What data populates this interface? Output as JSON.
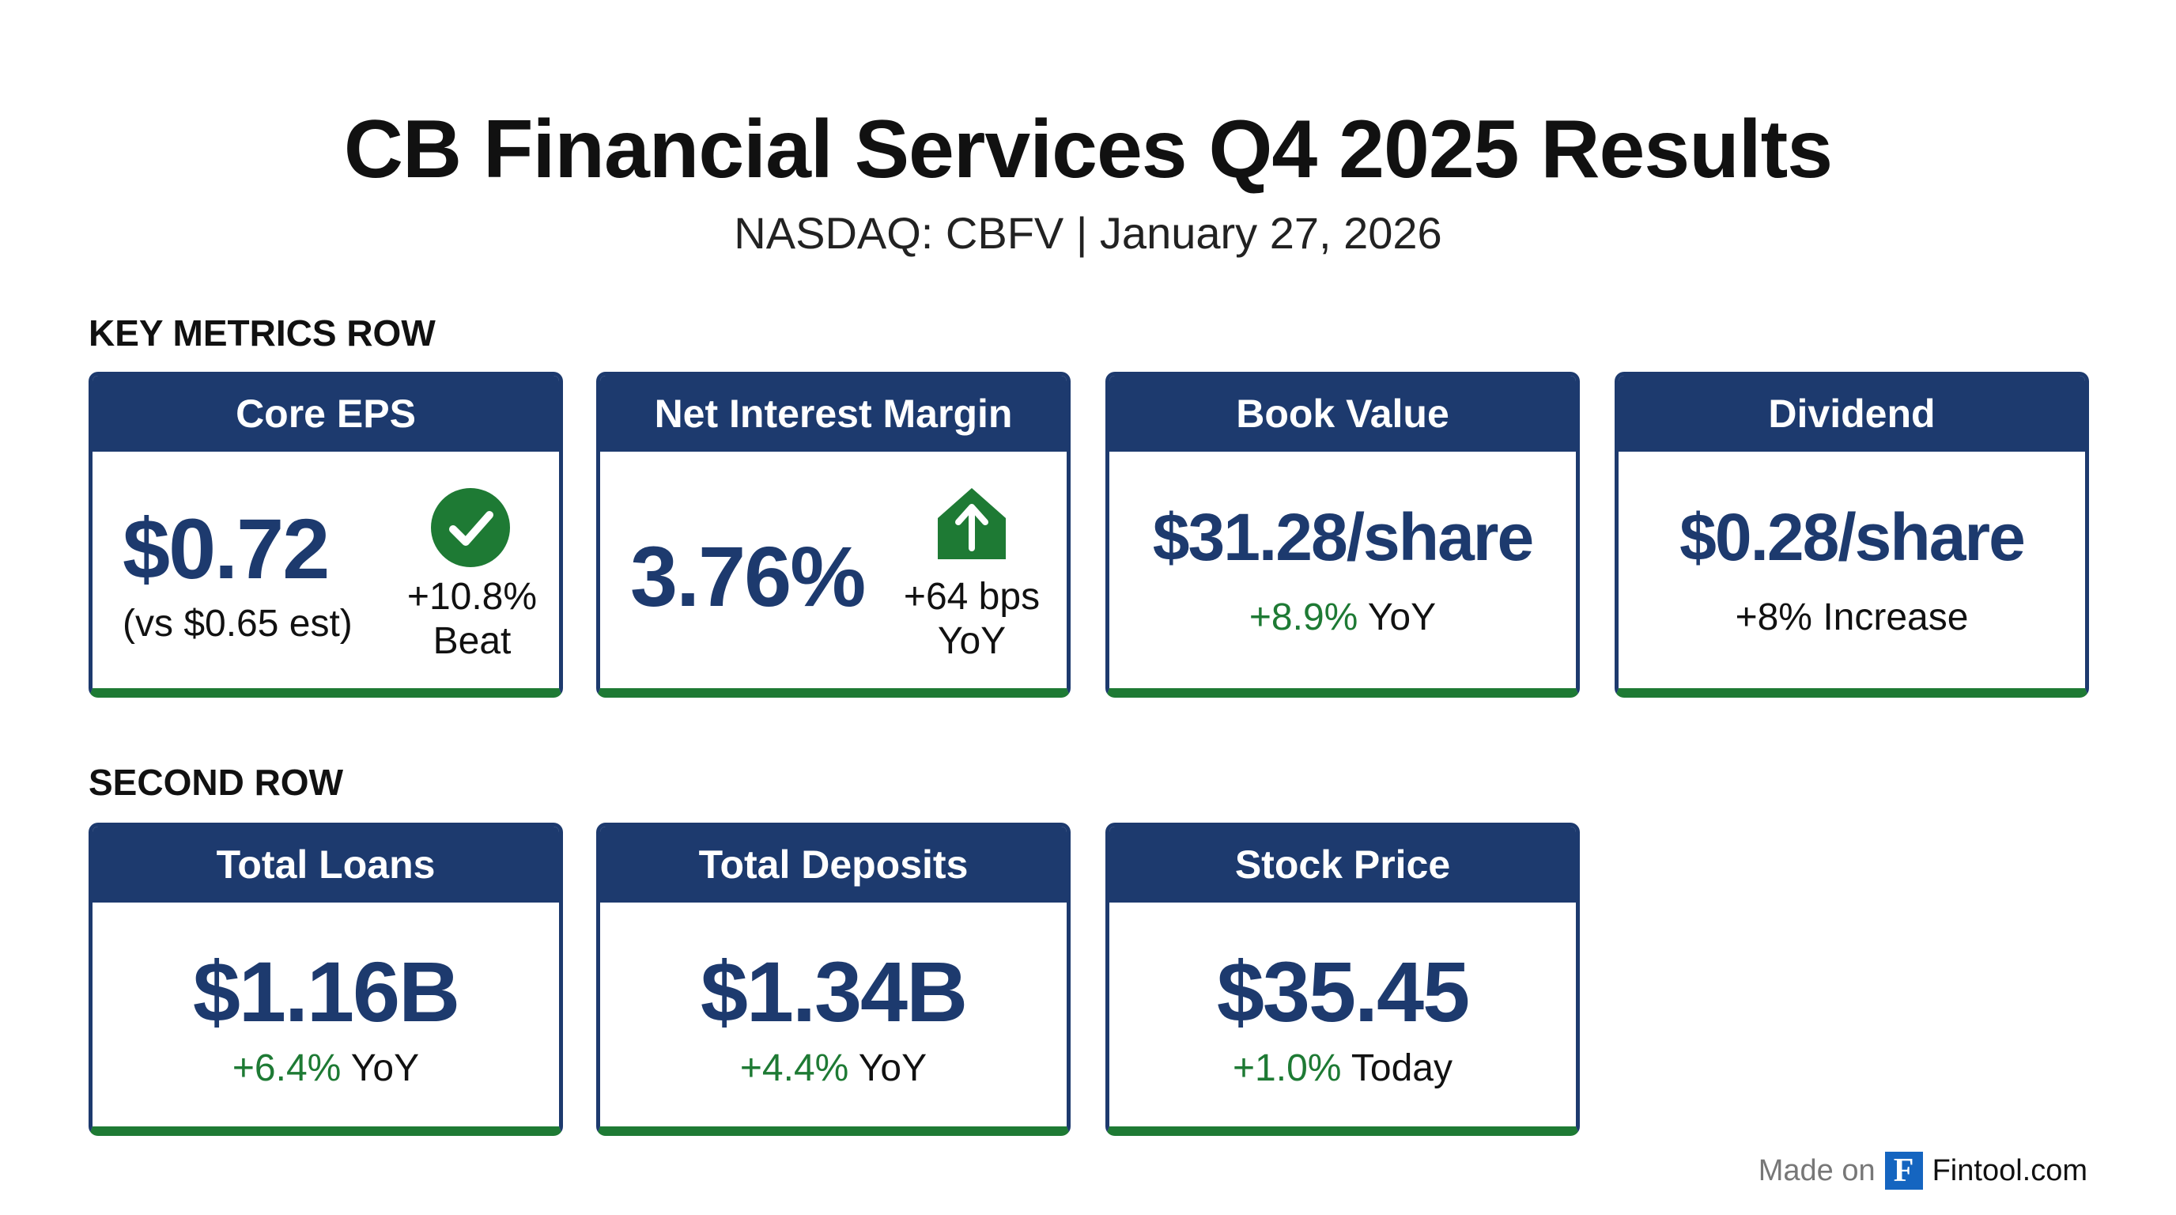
{
  "header": {
    "title": "CB Financial Services Q4 2025 Results",
    "subtitle": "NASDAQ: CBFV | January 27, 2026"
  },
  "sections": {
    "row1": "KEY METRICS ROW",
    "row2": "SECOND ROW"
  },
  "cards": [
    {
      "title": "Core EPS",
      "value": "$0.72",
      "note": "(vs $0.65 est)",
      "change": "+10.8%",
      "change_label": "Beat",
      "icon": "check-circle-icon"
    },
    {
      "title": "Net Interest Margin",
      "value": "3.76%",
      "change": "+64 bps",
      "change_label": "YoY",
      "icon": "arrow-up-icon"
    },
    {
      "title": "Book Value",
      "value": "$31.28/share",
      "change": "+8.9%",
      "change_label": "YoY"
    },
    {
      "title": "Dividend",
      "value": "$0.28/share",
      "change": "+8% Increase",
      "change_label": ""
    },
    {
      "title": "Total Loans",
      "value": "$1.16B",
      "change": "+6.4%",
      "change_label": "YoY"
    },
    {
      "title": "Total Deposits",
      "value": "$1.34B",
      "change": "+4.4%",
      "change_label": "YoY"
    },
    {
      "title": "Stock Price",
      "value": "$35.45",
      "change": "+1.0%",
      "change_label": "Today"
    }
  ],
  "footer": {
    "made_on": "Made on",
    "logo_letter": "F",
    "brand": "Fintool.com"
  },
  "colors": {
    "navy": "#1d3a6e",
    "green": "#1e7a34",
    "logo": "#1565c0"
  }
}
